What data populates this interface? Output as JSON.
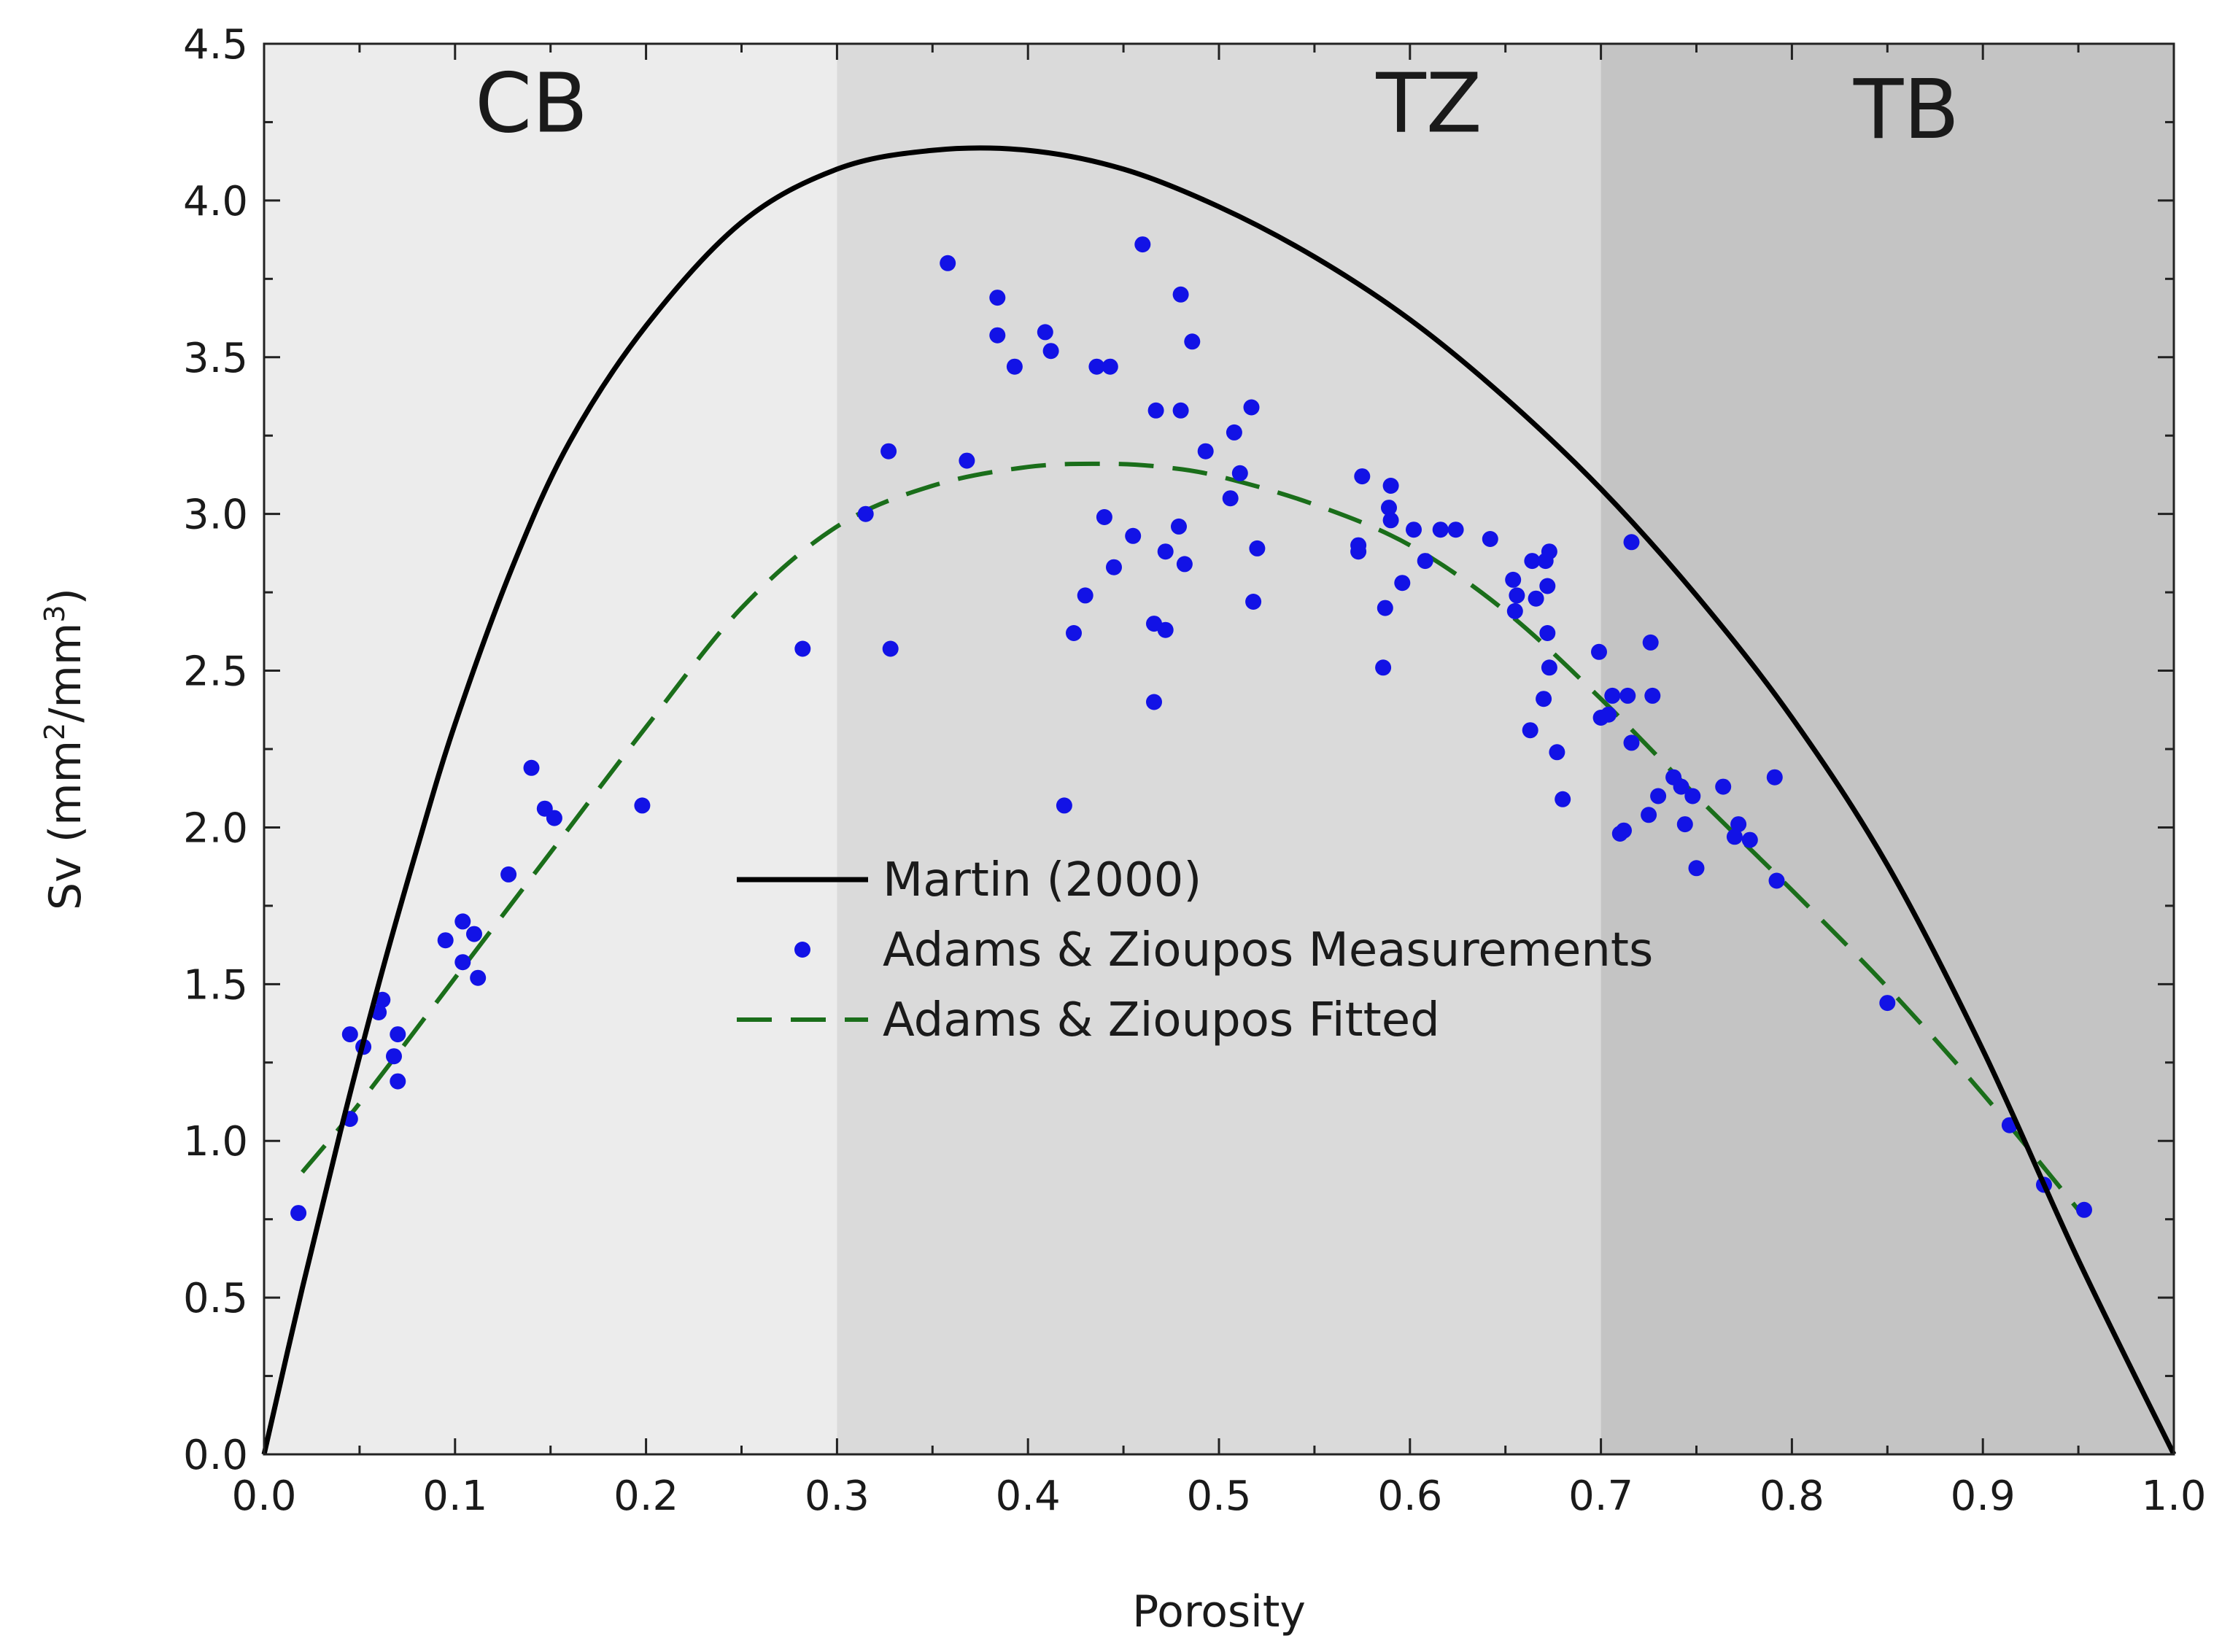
{
  "chart_data": {
    "type": "scatter",
    "title": "",
    "xlabel": "Porosity",
    "ylabel": {
      "prefix": "Sv (mm",
      "sup1": "2",
      "mid": "/mm",
      "sup2": "3",
      "suffix": ")"
    },
    "xlim": [
      0.0,
      1.0
    ],
    "ylim": [
      0.0,
      4.5
    ],
    "grid": false,
    "legend_position": "center",
    "x_ticks": [
      "0.0",
      "0.1",
      "0.2",
      "0.3",
      "0.4",
      "0.5",
      "0.6",
      "0.7",
      "0.8",
      "0.9",
      "1.0"
    ],
    "y_ticks": [
      "0.0",
      "0.5",
      "1.0",
      "1.5",
      "2.0",
      "2.5",
      "3.0",
      "3.5",
      "4.0",
      "4.5"
    ],
    "regions": [
      {
        "label": "CB",
        "range": [
          0.0,
          0.3
        ],
        "color": "#ececec"
      },
      {
        "label": "TZ",
        "range": [
          0.3,
          0.7
        ],
        "color": "#dadada"
      },
      {
        "label": "TB",
        "range": [
          0.7,
          1.0
        ],
        "color": "#c4c4c4"
      }
    ],
    "series": [
      {
        "name": "Martin (2000)",
        "style": "line",
        "color": "#000000",
        "points": [
          [
            0.0,
            0.0
          ],
          [
            0.02,
            0.53
          ],
          [
            0.04,
            1.03
          ],
          [
            0.06,
            1.5
          ],
          [
            0.08,
            1.93
          ],
          [
            0.1,
            2.33
          ],
          [
            0.13,
            2.83
          ],
          [
            0.16,
            3.23
          ],
          [
            0.2,
            3.6
          ],
          [
            0.25,
            3.93
          ],
          [
            0.3,
            4.1
          ],
          [
            0.35,
            4.16
          ],
          [
            0.4,
            4.16
          ],
          [
            0.45,
            4.1
          ],
          [
            0.5,
            3.98
          ],
          [
            0.55,
            3.82
          ],
          [
            0.6,
            3.62
          ],
          [
            0.65,
            3.37
          ],
          [
            0.7,
            3.08
          ],
          [
            0.75,
            2.74
          ],
          [
            0.8,
            2.35
          ],
          [
            0.85,
            1.88
          ],
          [
            0.9,
            1.29
          ],
          [
            0.95,
            0.62
          ],
          [
            1.0,
            0.0
          ]
        ]
      },
      {
        "name": "Adams & Zioupos Measurements",
        "style": "points",
        "color": "#1212e6",
        "points": [
          [
            0.018,
            0.77
          ],
          [
            0.045,
            1.07
          ],
          [
            0.045,
            1.34
          ],
          [
            0.052,
            1.3
          ],
          [
            0.06,
            1.41
          ],
          [
            0.062,
            1.45
          ],
          [
            0.068,
            1.27
          ],
          [
            0.07,
            1.19
          ],
          [
            0.07,
            1.34
          ],
          [
            0.095,
            1.64
          ],
          [
            0.104,
            1.7
          ],
          [
            0.104,
            1.57
          ],
          [
            0.11,
            1.66
          ],
          [
            0.112,
            1.52
          ],
          [
            0.128,
            1.85
          ],
          [
            0.14,
            2.19
          ],
          [
            0.147,
            2.06
          ],
          [
            0.152,
            2.03
          ],
          [
            0.198,
            2.07
          ],
          [
            0.282,
            2.57
          ],
          [
            0.315,
            3.0
          ],
          [
            0.327,
            3.2
          ],
          [
            0.328,
            2.57
          ],
          [
            0.358,
            3.8
          ],
          [
            0.368,
            3.17
          ],
          [
            0.384,
            3.69
          ],
          [
            0.384,
            3.57
          ],
          [
            0.393,
            3.47
          ],
          [
            0.409,
            3.58
          ],
          [
            0.412,
            3.52
          ],
          [
            0.419,
            2.07
          ],
          [
            0.424,
            2.62
          ],
          [
            0.43,
            2.74
          ],
          [
            0.436,
            3.47
          ],
          [
            0.44,
            2.99
          ],
          [
            0.443,
            3.47
          ],
          [
            0.445,
            2.83
          ],
          [
            0.455,
            2.93
          ],
          [
            0.46,
            3.86
          ],
          [
            0.466,
            2.65
          ],
          [
            0.466,
            2.4
          ],
          [
            0.467,
            3.33
          ],
          [
            0.472,
            2.88
          ],
          [
            0.472,
            2.63
          ],
          [
            0.479,
            2.96
          ],
          [
            0.48,
            3.33
          ],
          [
            0.48,
            3.7
          ],
          [
            0.482,
            2.84
          ],
          [
            0.486,
            3.55
          ],
          [
            0.493,
            3.2
          ],
          [
            0.506,
            3.05
          ],
          [
            0.508,
            3.26
          ],
          [
            0.511,
            3.13
          ],
          [
            0.517,
            3.34
          ],
          [
            0.518,
            2.72
          ],
          [
            0.52,
            2.89
          ],
          [
            0.573,
            2.88
          ],
          [
            0.573,
            2.9
          ],
          [
            0.575,
            3.12
          ],
          [
            0.586,
            2.51
          ],
          [
            0.587,
            2.7
          ],
          [
            0.589,
            3.02
          ],
          [
            0.59,
            3.09
          ],
          [
            0.59,
            2.98
          ],
          [
            0.596,
            2.78
          ],
          [
            0.602,
            2.95
          ],
          [
            0.608,
            2.85
          ],
          [
            0.616,
            2.95
          ],
          [
            0.624,
            2.95
          ],
          [
            0.642,
            2.92
          ],
          [
            0.654,
            2.79
          ],
          [
            0.655,
            2.69
          ],
          [
            0.656,
            2.74
          ],
          [
            0.663,
            2.31
          ],
          [
            0.664,
            2.85
          ],
          [
            0.666,
            2.73
          ],
          [
            0.67,
            2.41
          ],
          [
            0.671,
            2.85
          ],
          [
            0.672,
            2.62
          ],
          [
            0.672,
            2.77
          ],
          [
            0.673,
            2.51
          ],
          [
            0.673,
            2.88
          ],
          [
            0.677,
            2.24
          ],
          [
            0.68,
            2.09
          ],
          [
            0.699,
            2.56
          ],
          [
            0.7,
            2.35
          ],
          [
            0.704,
            2.36
          ],
          [
            0.706,
            2.42
          ],
          [
            0.71,
            1.98
          ],
          [
            0.712,
            1.99
          ],
          [
            0.714,
            2.42
          ],
          [
            0.716,
            2.27
          ],
          [
            0.716,
            2.91
          ],
          [
            0.725,
            2.04
          ],
          [
            0.726,
            2.59
          ],
          [
            0.727,
            2.42
          ],
          [
            0.73,
            2.1
          ],
          [
            0.738,
            2.16
          ],
          [
            0.742,
            2.13
          ],
          [
            0.744,
            2.01
          ],
          [
            0.748,
            2.1
          ],
          [
            0.75,
            1.87
          ],
          [
            0.764,
            2.13
          ],
          [
            0.77,
            1.97
          ],
          [
            0.772,
            2.01
          ],
          [
            0.778,
            1.96
          ],
          [
            0.791,
            2.16
          ],
          [
            0.792,
            1.83
          ],
          [
            0.85,
            1.44
          ],
          [
            0.914,
            1.05
          ],
          [
            0.932,
            0.86
          ],
          [
            0.953,
            0.78
          ]
        ]
      },
      {
        "name": "Adams & Zioupos Fitted",
        "style": "dashed",
        "color": "#1a6e1a",
        "points": [
          [
            0.02,
            0.9
          ],
          [
            0.05,
            1.12
          ],
          [
            0.1,
            1.52
          ],
          [
            0.15,
            1.92
          ],
          [
            0.2,
            2.32
          ],
          [
            0.25,
            2.7
          ],
          [
            0.3,
            2.96
          ],
          [
            0.35,
            3.09
          ],
          [
            0.4,
            3.15
          ],
          [
            0.44,
            3.16
          ],
          [
            0.47,
            3.15
          ],
          [
            0.5,
            3.12
          ],
          [
            0.55,
            3.03
          ],
          [
            0.6,
            2.9
          ],
          [
            0.65,
            2.69
          ],
          [
            0.7,
            2.41
          ],
          [
            0.75,
            2.1
          ],
          [
            0.8,
            1.8
          ],
          [
            0.85,
            1.49
          ],
          [
            0.9,
            1.15
          ],
          [
            0.95,
            0.78
          ]
        ]
      }
    ]
  }
}
